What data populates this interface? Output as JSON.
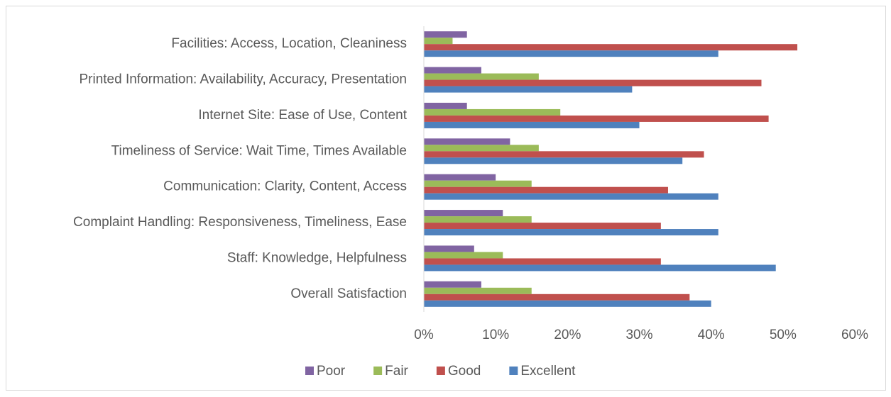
{
  "chart_data": {
    "type": "hbar",
    "categories": [
      "Facilities: Access, Location, Cleaniness",
      "Printed Information: Availability, Accuracy, Presentation",
      "Internet Site: Ease of Use, Content",
      "Timeliness of Service: Wait Time, Times Available",
      "Communication: Clarity, Content, Access",
      "Complaint Handling: Responsiveness, Timeliness, Ease",
      "Staff: Knowledge, Helpfulness",
      "Overall Satisfaction"
    ],
    "series": [
      {
        "name": "Poor",
        "color": "#8064a2",
        "values": [
          6,
          8,
          6,
          12,
          10,
          11,
          7,
          8
        ]
      },
      {
        "name": "Fair",
        "color": "#9bbb59",
        "values": [
          4,
          16,
          19,
          16,
          15,
          15,
          11,
          15
        ]
      },
      {
        "name": "Good",
        "color": "#c0504d",
        "values": [
          52,
          47,
          48,
          39,
          34,
          33,
          33,
          37
        ]
      },
      {
        "name": "Excellent",
        "color": "#4f81bd",
        "values": [
          41,
          29,
          30,
          36,
          41,
          41,
          49,
          40
        ]
      }
    ],
    "xlim": [
      0,
      60
    ],
    "xticks": [
      {
        "value": 0,
        "label": "0%"
      },
      {
        "value": 10,
        "label": "10%"
      },
      {
        "value": 20,
        "label": "20%"
      },
      {
        "value": 30,
        "label": "30%"
      },
      {
        "value": 40,
        "label": "40%"
      },
      {
        "value": 50,
        "label": "50%"
      },
      {
        "value": 60,
        "label": "60%"
      }
    ],
    "grid": false,
    "legend": "bottom"
  }
}
